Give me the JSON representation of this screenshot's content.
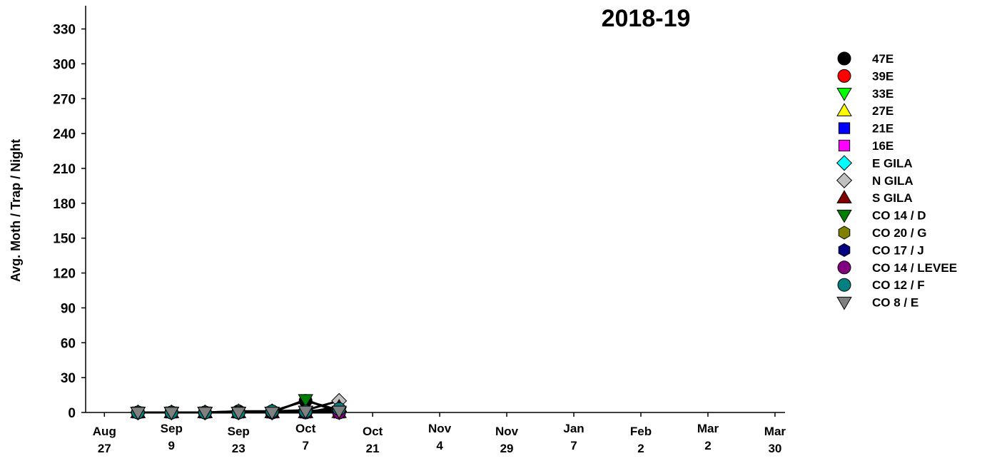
{
  "chart_data": {
    "type": "line",
    "title": "2018-19",
    "y_label": "Avg. Moth / Trap / Night",
    "x": [
      0.5,
      1,
      1.5,
      2,
      2.5,
      3,
      3.5
    ],
    "xlim": [
      -0.28,
      10.15
    ],
    "xticks": [
      {
        "value": 0,
        "label": [
          "Aug",
          "27"
        ]
      },
      {
        "value": 1,
        "label": [
          "Sep",
          "9"
        ]
      },
      {
        "value": 2,
        "label": [
          "Sep",
          "23"
        ]
      },
      {
        "value": 3,
        "label": [
          "Oct",
          "7"
        ]
      },
      {
        "value": 4,
        "label": [
          "Oct",
          "21"
        ]
      },
      {
        "value": 5,
        "label": [
          "Nov",
          "4"
        ]
      },
      {
        "value": 6,
        "label": [
          "Nov",
          "29"
        ]
      },
      {
        "value": 7,
        "label": [
          "Jan",
          "7"
        ]
      },
      {
        "value": 8,
        "label": [
          "Feb",
          "2"
        ]
      },
      {
        "value": 9,
        "label": [
          "Mar",
          "2"
        ]
      },
      {
        "value": 10,
        "label": [
          "Mar",
          "30"
        ]
      }
    ],
    "ylim": [
      0,
      350
    ],
    "yticks": [
      0,
      30,
      60,
      90,
      120,
      150,
      180,
      210,
      240,
      270,
      300,
      330
    ],
    "line_color": "#000000",
    "series": [
      {
        "name": "47E",
        "color": "#000000",
        "marker": "circle",
        "values": [
          0,
          0,
          0,
          1,
          1,
          10,
          2
        ]
      },
      {
        "name": "39E",
        "color": "#ff0000",
        "marker": "circle",
        "values": [
          0,
          0,
          0,
          0,
          0,
          1,
          0
        ]
      },
      {
        "name": "33E",
        "color": "#00ff00",
        "marker": "triangle-down",
        "values": [
          0,
          0,
          0,
          0,
          0,
          1,
          0
        ]
      },
      {
        "name": "27E",
        "color": "#ffff00",
        "marker": "triangle-up",
        "values": [
          0,
          0,
          0,
          0,
          0,
          0,
          0
        ]
      },
      {
        "name": "21E",
        "color": "#0000ff",
        "marker": "square",
        "values": [
          0,
          0,
          0,
          0,
          0,
          0,
          0
        ]
      },
      {
        "name": "16E",
        "color": "#ff00ff",
        "marker": "square",
        "values": [
          0,
          0,
          0,
          0,
          0,
          0,
          0
        ]
      },
      {
        "name": "E GILA",
        "color": "#00ffff",
        "marker": "diamond",
        "values": [
          0,
          0,
          0,
          0,
          0,
          1,
          1
        ]
      },
      {
        "name": "N GILA",
        "color": "#c0c0c0",
        "marker": "diamond",
        "values": [
          0,
          0,
          0,
          1,
          1,
          2,
          10
        ]
      },
      {
        "name": "S GILA",
        "color": "#800000",
        "marker": "triangle-up",
        "values": [
          0,
          0,
          0,
          0,
          0,
          0,
          5
        ]
      },
      {
        "name": "CO 14 / D",
        "color": "#008000",
        "marker": "triangle-down",
        "values": [
          0,
          0,
          0,
          0,
          0,
          11,
          0
        ]
      },
      {
        "name": "CO 20 / G",
        "color": "#808000",
        "marker": "hexagon",
        "values": [
          0,
          0,
          0,
          0,
          0,
          0,
          0
        ]
      },
      {
        "name": "CO 17 / J",
        "color": "#000080",
        "marker": "hexagon",
        "values": [
          0,
          0,
          0,
          0,
          0,
          0,
          0
        ]
      },
      {
        "name": "CO 14 / LEVEE",
        "color": "#800080",
        "marker": "circle",
        "values": [
          0,
          0,
          0,
          0,
          0,
          0,
          0
        ]
      },
      {
        "name": "CO 12 / F",
        "color": "#008080",
        "marker": "circle",
        "values": [
          0,
          0,
          0,
          0,
          1,
          1,
          3
        ]
      },
      {
        "name": "CO 8 / E",
        "color": "#808080",
        "marker": "triangle-down",
        "values": [
          0,
          0,
          0,
          0,
          0,
          1,
          1
        ]
      }
    ]
  }
}
